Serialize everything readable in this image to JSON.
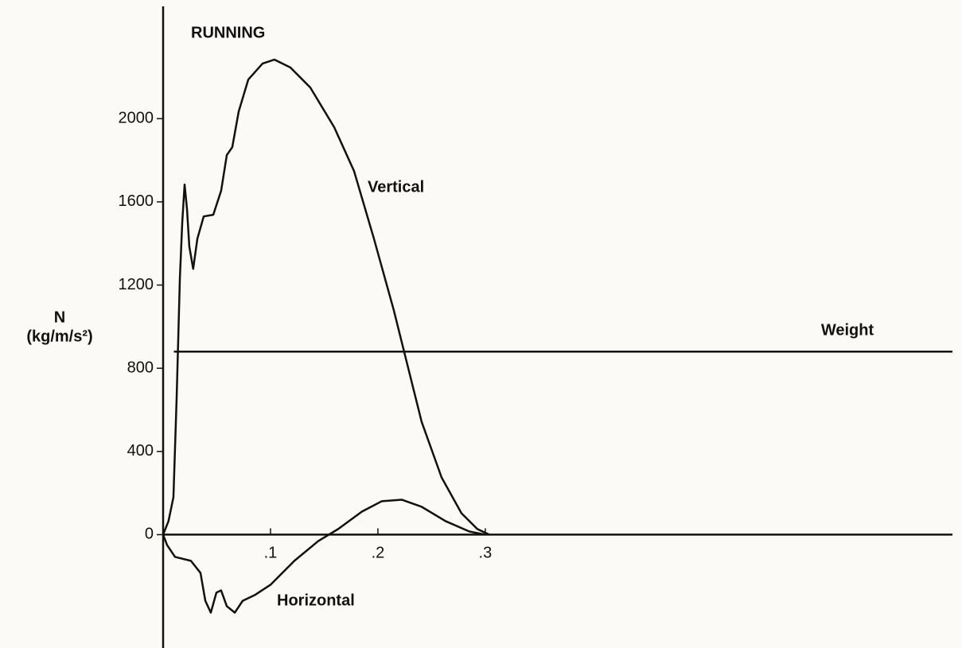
{
  "chart_data": {
    "type": "line",
    "title": "RUNNING",
    "ylabel": [
      "N",
      "(kg/m/s²)"
    ],
    "xlim": [
      0,
      0.735
    ],
    "ylim": [
      -545,
      2540
    ],
    "xticks": [
      {
        "value": 0.1,
        "label": ".1"
      },
      {
        "value": 0.2,
        "label": ".2"
      },
      {
        "value": 0.3,
        "label": ".3"
      }
    ],
    "yticks": [
      0,
      400,
      800,
      1200,
      1600,
      2000
    ],
    "series": [
      {
        "name": "Vertical",
        "color": "#111111",
        "x": [
          0,
          0.005,
          0.0096,
          0.0126,
          0.0156,
          0.0178,
          0.02,
          0.0222,
          0.0244,
          0.028,
          0.0319,
          0.0378,
          0.0467,
          0.054,
          0.0593,
          0.0644,
          0.0704,
          0.0793,
          0.0926,
          0.1037,
          0.1185,
          0.137,
          0.1593,
          0.1778,
          0.1963,
          0.2148,
          0.2259,
          0.2407,
          0.2593,
          0.2778,
          0.2926,
          0.3037
        ],
        "values": [
          0,
          65,
          180,
          658,
          1232,
          1500,
          1683,
          1568,
          1385,
          1278,
          1423,
          1530,
          1538,
          1653,
          1825,
          1863,
          2035,
          2188,
          2265,
          2284,
          2246,
          2150,
          1959,
          1748,
          1423,
          1079,
          849,
          543,
          275,
          103,
          27,
          0
        ]
      },
      {
        "name": "Horizontal",
        "color": "#111111",
        "x": [
          0,
          0.0037,
          0.0111,
          0.0259,
          0.0348,
          0.0393,
          0.0444,
          0.0496,
          0.054,
          0.0593,
          0.0667,
          0.0741,
          0.0852,
          0.1,
          0.1222,
          0.1444,
          0.163,
          0.1852,
          0.2037,
          0.2222,
          0.2407,
          0.263,
          0.2852,
          0.3
        ],
        "values": [
          0,
          -50,
          -107,
          -126,
          -184,
          -318,
          -375,
          -279,
          -268,
          -344,
          -375,
          -318,
          -291,
          -241,
          -126,
          -31,
          27,
          111,
          161,
          168,
          134,
          65,
          15,
          0
        ]
      },
      {
        "name": "Weight",
        "color": "#111111",
        "x": [
          0.01,
          0.735
        ],
        "values": [
          880,
          880
        ]
      }
    ]
  }
}
